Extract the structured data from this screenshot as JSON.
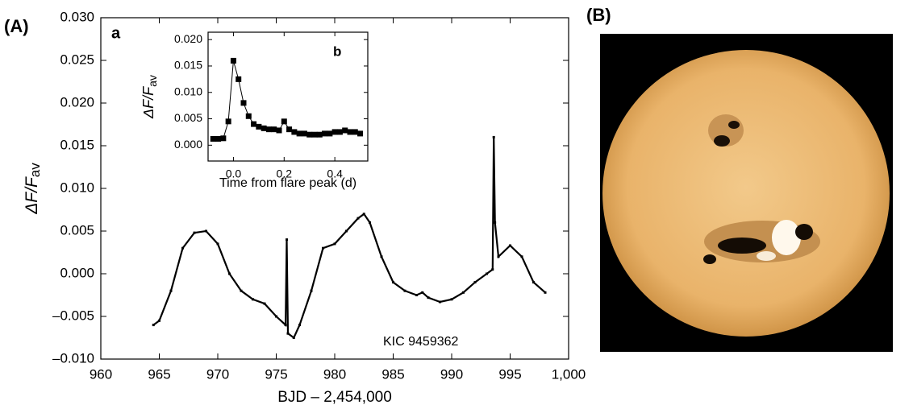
{
  "panel_labels": [
    "(A)",
    "(B)"
  ],
  "chart_data": [
    {
      "type": "line",
      "label": "a",
      "annotation": "KIC 9459362",
      "xlabel": "BJD – 2,454,000",
      "ylabel": [
        "ΔF/F",
        "av"
      ],
      "color": "#000000",
      "xlim": [
        960,
        1000
      ],
      "ylim": [
        -0.01,
        0.03
      ],
      "xticks": [
        960,
        965,
        970,
        975,
        980,
        985,
        990,
        995,
        {
          "value": 1000,
          "label": "1,000"
        }
      ],
      "yticks": [
        {
          "value": -0.01,
          "label": "–0.010"
        },
        {
          "value": -0.005,
          "label": "–0.005"
        },
        {
          "value": 0,
          "label": "0.000"
        },
        {
          "value": 0.005,
          "label": "0.005"
        },
        {
          "value": 0.01,
          "label": "0.010"
        },
        {
          "value": 0.015,
          "label": "0.015"
        },
        {
          "value": 0.02,
          "label": "0.020"
        },
        {
          "value": 0.025,
          "label": "0.025"
        },
        {
          "value": 0.03,
          "label": "0.030"
        }
      ],
      "x": [
        964.5,
        965,
        966,
        967,
        968,
        969,
        970,
        971,
        972,
        973,
        974,
        975,
        975.8,
        975.9,
        976,
        976.5,
        977,
        978,
        979,
        980,
        981,
        982,
        982.5,
        983,
        984,
        985,
        986,
        987,
        987.5,
        988,
        989,
        990,
        991,
        992,
        993,
        993.5,
        993.6,
        993.7,
        994,
        995,
        996,
        997,
        998
      ],
      "values": [
        -0.006,
        -0.0055,
        -0.002,
        0.003,
        0.0048,
        0.005,
        0.0035,
        0.0,
        -0.002,
        -0.003,
        -0.0035,
        -0.005,
        -0.006,
        0.004,
        -0.007,
        -0.0075,
        -0.006,
        -0.002,
        0.003,
        0.0035,
        0.005,
        0.0065,
        0.007,
        0.006,
        0.002,
        -0.001,
        -0.002,
        -0.0025,
        -0.0022,
        -0.0028,
        -0.0033,
        -0.003,
        -0.0022,
        -0.001,
        0.0,
        0.0005,
        0.016,
        0.006,
        0.002,
        0.0033,
        0.002,
        -0.001,
        -0.0022
      ]
    },
    {
      "type": "line",
      "label": "b",
      "xlabel": "Time from flare peak (d)",
      "ylabel": [
        "ΔF/F",
        "av"
      ],
      "color": "#000000",
      "xlim": [
        -0.1,
        0.53
      ],
      "ylim": [
        -0.003,
        0.0214
      ],
      "xticks": [
        {
          "value": 0,
          "label": "0.0"
        },
        0.2,
        0.4
      ],
      "yticks": [
        {
          "value": 0,
          "label": "0.000"
        },
        {
          "value": 0.005,
          "label": "0.005"
        },
        {
          "value": 0.01,
          "label": "0.010"
        },
        {
          "value": 0.015,
          "label": "0.015"
        },
        {
          "value": 0.02,
          "label": "0.020"
        }
      ],
      "x": [
        -0.08,
        -0.06,
        -0.04,
        -0.02,
        0,
        0.02,
        0.04,
        0.06,
        0.08,
        0.1,
        0.12,
        0.14,
        0.16,
        0.18,
        0.2,
        0.22,
        0.24,
        0.26,
        0.28,
        0.3,
        0.32,
        0.34,
        0.36,
        0.38,
        0.4,
        0.42,
        0.44,
        0.46,
        0.48,
        0.5
      ],
      "values": [
        0.0012,
        0.0012,
        0.0013,
        0.0045,
        0.016,
        0.0125,
        0.008,
        0.0055,
        0.004,
        0.0035,
        0.0032,
        0.003,
        0.003,
        0.0028,
        0.0045,
        0.003,
        0.0025,
        0.0022,
        0.0022,
        0.002,
        0.002,
        0.002,
        0.0022,
        0.0022,
        0.0025,
        0.0025,
        0.0028,
        0.0025,
        0.0025,
        0.0022
      ]
    }
  ]
}
